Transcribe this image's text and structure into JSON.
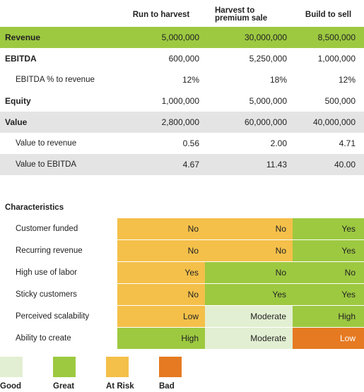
{
  "colors": {
    "good": "#e2efd2",
    "great": "#9dc941",
    "at_risk": "#f4c04a",
    "bad": "#e57a22",
    "revenue_band": "#9dc941",
    "grey_band": "#e4e4e4"
  },
  "header": {
    "col1": "Run to harvest",
    "col2_line1": "Harvest to",
    "col2_line2": "premium sale",
    "col3": "Build to sell"
  },
  "financials": [
    {
      "label": "Revenue",
      "values": [
        "5,000,000",
        "30,000,000",
        "8,500,000"
      ],
      "style": "bold green"
    },
    {
      "label": "EBITDA",
      "values": [
        "600,000",
        "5,250,000",
        "1,000,000"
      ],
      "style": "bold"
    },
    {
      "label": "EBITDA % to revenue",
      "values": [
        "12%",
        "18%",
        "12%"
      ],
      "style": "sub"
    },
    {
      "label": "Equity",
      "values": [
        "1,000,000",
        "5,000,000",
        "500,000"
      ],
      "style": "bold"
    },
    {
      "label": "Value",
      "values": [
        "2,800,000",
        "60,000,000",
        "40,000,000"
      ],
      "style": "bold grey"
    },
    {
      "label": "Value to revenue",
      "values": [
        "0.56",
        "2.00",
        "4.71"
      ],
      "style": "sub"
    },
    {
      "label": "Value to EBITDA",
      "values": [
        "4.67",
        "11.43",
        "40.00"
      ],
      "style": "sub grey"
    }
  ],
  "characteristics_title": "Characteristics",
  "characteristics": [
    {
      "label": "Customer funded",
      "cells": [
        {
          "text": "No",
          "rating": "at_risk"
        },
        {
          "text": "No",
          "rating": "at_risk"
        },
        {
          "text": "Yes",
          "rating": "great"
        }
      ]
    },
    {
      "label": "Recurring revenue",
      "cells": [
        {
          "text": "No",
          "rating": "at_risk"
        },
        {
          "text": "No",
          "rating": "at_risk"
        },
        {
          "text": "Yes",
          "rating": "great"
        }
      ]
    },
    {
      "label": "High use of labor",
      "cells": [
        {
          "text": "Yes",
          "rating": "at_risk"
        },
        {
          "text": "No",
          "rating": "great"
        },
        {
          "text": "No",
          "rating": "great"
        }
      ]
    },
    {
      "label": "Sticky customers",
      "cells": [
        {
          "text": "No",
          "rating": "at_risk"
        },
        {
          "text": "Yes",
          "rating": "great"
        },
        {
          "text": "Yes",
          "rating": "great"
        }
      ]
    },
    {
      "label": "Perceived scalability",
      "cells": [
        {
          "text": "Low",
          "rating": "at_risk"
        },
        {
          "text": "Moderate",
          "rating": "good"
        },
        {
          "text": "High",
          "rating": "great"
        }
      ]
    },
    {
      "label": "Ability to create",
      "cells": [
        {
          "text": "High",
          "rating": "great"
        },
        {
          "text": "Moderate",
          "rating": "good"
        },
        {
          "text": "Low",
          "rating": "bad"
        }
      ]
    }
  ],
  "legend": [
    {
      "label": "Good",
      "rating": "good"
    },
    {
      "label": "Great",
      "rating": "great"
    },
    {
      "label": "At Risk",
      "rating": "at_risk"
    },
    {
      "label": "Bad",
      "rating": "bad"
    }
  ]
}
